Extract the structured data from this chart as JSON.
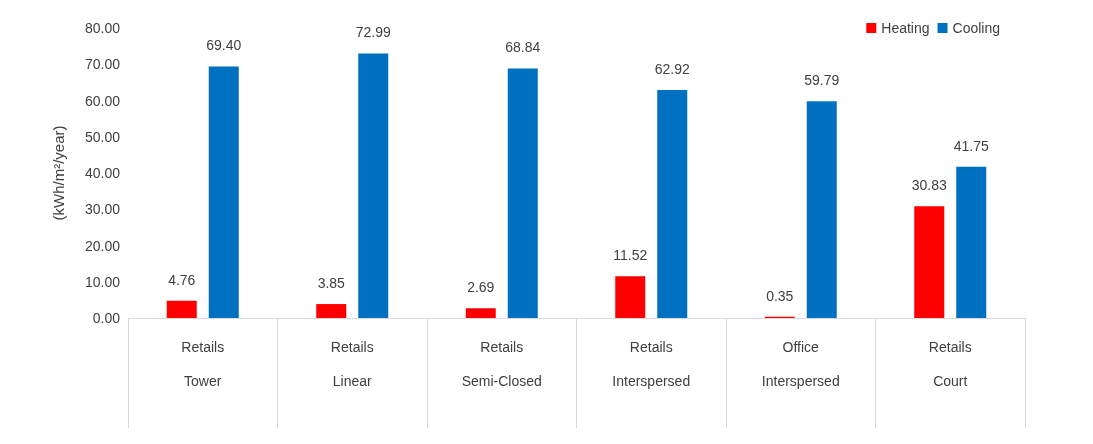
{
  "chart_data": {
    "type": "bar",
    "ylabel": "(kWh/m²/year)",
    "categories": [
      "Retails\nTower",
      "Retails\nLinear",
      "Retails\nSemi-Closed",
      "Retails\nInterspersed",
      "Office\nInterspersed",
      "Retails\nCourt"
    ],
    "series": [
      {
        "name": "Heating",
        "color": "#ff0000",
        "values": [
          4.76,
          3.85,
          2.69,
          11.52,
          0.35,
          30.83
        ],
        "value_labels": [
          "4.76",
          "3.85",
          "2.69",
          "11.52",
          "0.35",
          "30.83"
        ]
      },
      {
        "name": "Cooling",
        "color": "#0070c0",
        "values": [
          69.4,
          72.99,
          68.84,
          62.92,
          59.79,
          41.75
        ],
        "value_labels": [
          "69.40",
          "72.99",
          "68.84",
          "62.92",
          "59.79",
          "41.75"
        ]
      }
    ],
    "ylim": [
      0,
      80
    ],
    "yticks": [
      {
        "value": 0,
        "label": "0.00"
      },
      {
        "value": 10,
        "label": "10.00"
      },
      {
        "value": 20,
        "label": "20.00"
      },
      {
        "value": 30,
        "label": "30.00"
      },
      {
        "value": 40,
        "label": "40.00"
      },
      {
        "value": 50,
        "label": "50.00"
      },
      {
        "value": 60,
        "label": "60.00"
      },
      {
        "value": 70,
        "label": "70.00"
      },
      {
        "value": 80,
        "label": "80.00"
      }
    ],
    "grid": false,
    "legend": "top right"
  }
}
